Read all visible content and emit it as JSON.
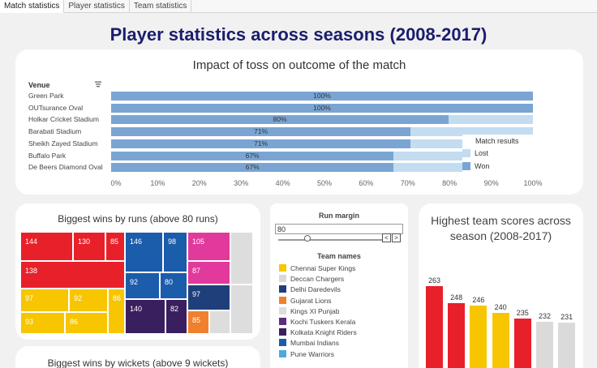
{
  "tabs": [
    {
      "label": "Match statistics",
      "active": true
    },
    {
      "label": "Player statistics",
      "active": false
    },
    {
      "label": "Team statistics",
      "active": false
    }
  ],
  "page_title": "Player statistics across seasons (2008-2017)",
  "toss": {
    "title": "Impact of toss on outcome of the match",
    "venue_header": "Venue",
    "legend_title": "Match results",
    "legend": [
      {
        "label": "Lost",
        "color": "#c3dcf0"
      },
      {
        "label": "Won",
        "color": "#7aa5d3"
      }
    ]
  },
  "chart_data": {
    "type": "bar",
    "title": "Impact of toss on outcome of the match",
    "categories": [
      "Green Park",
      "OUTsurance Oval",
      "Holkar Cricket Stadium",
      "Barabati Stadium",
      "Sheikh Zayed Stadium",
      "Buffalo Park",
      "De Beers Diamond Oval"
    ],
    "series": [
      {
        "name": "Won",
        "values": [
          100,
          100,
          80,
          71,
          71,
          67,
          67
        ]
      },
      {
        "name": "Lost",
        "values": [
          0,
          0,
          20,
          29,
          29,
          33,
          33
        ]
      }
    ],
    "labels": [
      "100%",
      "100%",
      "80%",
      "71%",
      "71%",
      "67%",
      "67%"
    ],
    "xticks": [
      "0%",
      "10%",
      "20%",
      "30%",
      "40%",
      "50%",
      "60%",
      "70%",
      "80%",
      "90%",
      "100%"
    ],
    "xlim": [
      0,
      100
    ],
    "legend_position": "right"
  },
  "wins": {
    "title": "Biggest wins by runs (above 80 runs)",
    "cells": [
      "144",
      "130",
      "85",
      "138",
      "146",
      "98",
      "92",
      "80",
      "105",
      "87",
      "97",
      "92",
      "86",
      "93",
      "86",
      "140",
      "82",
      "97",
      "85"
    ]
  },
  "wickets": {
    "title": "Biggest wins by wickets (above 9 wickets)"
  },
  "filter": {
    "title": "Run margin",
    "value": "80",
    "prev_label": "<",
    "next_label": ">",
    "team_header": "Team names",
    "teams": [
      {
        "name": "Chennai Super Kings",
        "color": "#f7c600"
      },
      {
        "name": "Deccan Chargers",
        "color": "#d8d8d8"
      },
      {
        "name": "Delhi Daredevils",
        "color": "#1f3f7a"
      },
      {
        "name": "Gujarat Lions",
        "color": "#f0802d"
      },
      {
        "name": "Kings XI Punjab",
        "color": "#dddddd"
      },
      {
        "name": "Kochi Tuskers Kerala",
        "color": "#5a2d82"
      },
      {
        "name": "Kolkata Knight Riders",
        "color": "#3a1f5e"
      },
      {
        "name": "Mumbai Indians",
        "color": "#1b5cab"
      },
      {
        "name": "Pune Warriors",
        "color": "#4fa8e0"
      }
    ]
  },
  "scores": {
    "title": "Highest team scores across season (2008-2017)",
    "values": [
      263,
      248,
      246,
      240,
      235,
      232,
      231
    ],
    "colors": [
      "#e8202a",
      "#e8202a",
      "#f7c600",
      "#f7c600",
      "#e8202a",
      "#dadada",
      "#dadada"
    ]
  }
}
